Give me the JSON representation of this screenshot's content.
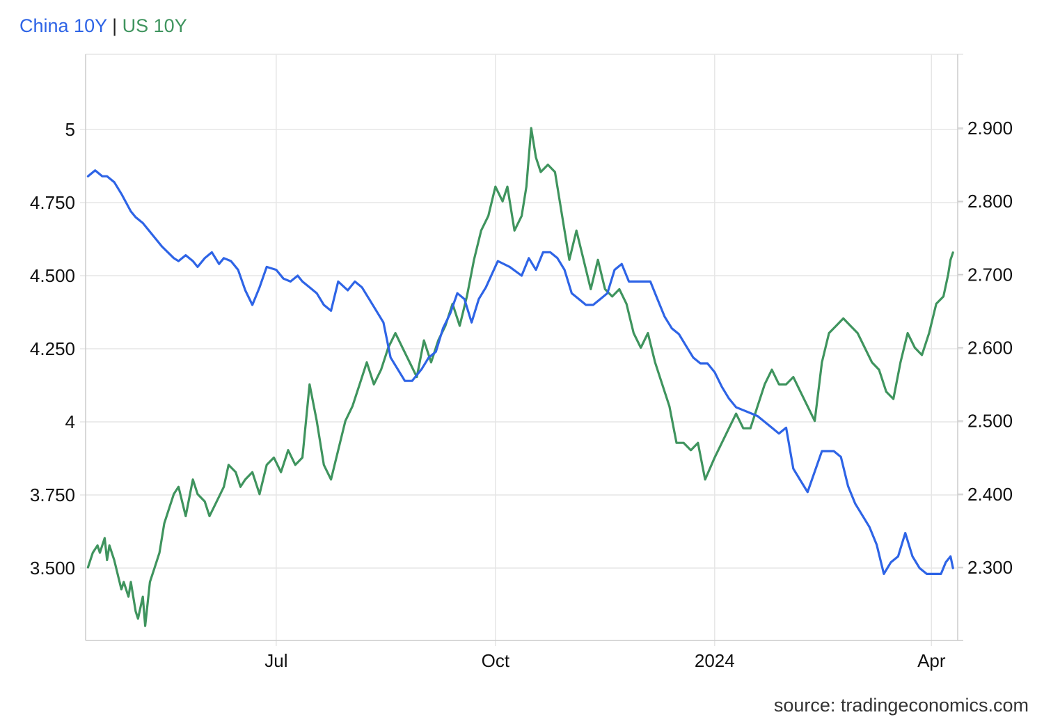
{
  "legend": {
    "china_label": "China 10Y",
    "separator": "|",
    "us_label": "US 10Y"
  },
  "source_label": "source: tradingeconomics.com",
  "chart_data": {
    "type": "line",
    "x_ticks": [
      "Jul",
      "Oct",
      "2024",
      "Apr"
    ],
    "left_axis": {
      "ticks": [
        5,
        4.75,
        4.5,
        4.25,
        4,
        3.75,
        3.5
      ],
      "tick_labels": [
        "5",
        "4.750",
        "4.500",
        "4.250",
        "4",
        "3.750",
        "3.500"
      ],
      "ylim": [
        3.25,
        5.25
      ]
    },
    "right_axis": {
      "ticks": [
        2.9,
        2.8,
        2.7,
        2.6,
        2.5,
        2.4,
        2.3
      ],
      "tick_labels": [
        "2.900",
        "2.800",
        "2.700",
        "2.600",
        "2.500",
        "2.400",
        "2.300"
      ],
      "ylim": [
        2.2,
        2.9
      ]
    },
    "xlim": [
      "2023-04-12",
      "2024-04-12"
    ],
    "grid": true,
    "series": [
      {
        "name": "China 10Y",
        "axis": "left",
        "color": "#2e64e6",
        "dates": [
          "2023-04-13",
          "2023-04-16",
          "2023-04-19",
          "2023-04-21",
          "2023-04-24",
          "2023-04-27",
          "2023-05-01",
          "2023-05-03",
          "2023-05-06",
          "2023-05-14",
          "2023-05-19",
          "2023-05-21",
          "2023-05-24",
          "2023-05-27",
          "2023-05-29",
          "2023-06-01",
          "2023-06-04",
          "2023-06-07",
          "2023-06-09",
          "2023-06-12",
          "2023-06-15",
          "2023-06-18",
          "2023-06-21",
          "2023-06-24",
          "2023-06-27",
          "2023-07-01",
          "2023-07-04",
          "2023-07-07",
          "2023-07-10",
          "2023-07-12",
          "2023-07-15",
          "2023-07-18",
          "2023-07-21",
          "2023-07-24",
          "2023-07-27",
          "2023-07-31",
          "2023-08-03",
          "2023-08-06",
          "2023-08-09",
          "2023-08-12",
          "2023-08-15",
          "2023-08-18",
          "2023-08-21",
          "2023-08-24",
          "2023-08-27",
          "2023-08-31",
          "2023-09-03",
          "2023-09-06",
          "2023-09-09",
          "2023-09-12",
          "2023-09-15",
          "2023-09-18",
          "2023-09-21",
          "2023-09-24",
          "2023-09-27",
          "2023-10-02",
          "2023-10-07",
          "2023-10-12",
          "2023-10-15",
          "2023-10-18",
          "2023-10-21",
          "2023-10-24",
          "2023-10-27",
          "2023-10-30",
          "2023-11-02",
          "2023-11-05",
          "2023-11-08",
          "2023-11-11",
          "2023-11-14",
          "2023-11-17",
          "2023-11-20",
          "2023-11-23",
          "2023-11-26",
          "2023-11-29",
          "2023-12-02",
          "2023-12-05",
          "2023-12-08",
          "2023-12-11",
          "2023-12-14",
          "2023-12-17",
          "2023-12-20",
          "2023-12-23",
          "2023-12-26",
          "2023-12-29",
          "2024-01-01",
          "2024-01-04",
          "2024-01-07",
          "2024-01-10",
          "2024-01-13",
          "2024-01-16",
          "2024-01-19",
          "2024-01-22",
          "2024-01-25",
          "2024-01-28",
          "2024-01-31",
          "2024-02-03",
          "2024-02-06",
          "2024-02-09",
          "2024-02-15",
          "2024-02-20",
          "2024-02-23",
          "2024-02-26",
          "2024-02-29",
          "2024-03-03",
          "2024-03-06",
          "2024-03-09",
          "2024-03-12",
          "2024-03-15",
          "2024-03-18",
          "2024-03-21",
          "2024-03-24",
          "2024-03-27",
          "2024-03-30",
          "2024-04-05",
          "2024-04-07",
          "2024-04-09",
          "2024-04-10"
        ],
        "values": [
          4.84,
          4.86,
          4.84,
          4.84,
          4.82,
          4.78,
          4.72,
          4.7,
          4.68,
          4.6,
          4.56,
          4.55,
          4.57,
          4.55,
          4.53,
          4.56,
          4.58,
          4.54,
          4.56,
          4.55,
          4.52,
          4.45,
          4.4,
          4.46,
          4.53,
          4.52,
          4.49,
          4.48,
          4.5,
          4.48,
          4.46,
          4.44,
          4.4,
          4.38,
          4.48,
          4.45,
          4.48,
          4.46,
          4.42,
          4.38,
          4.34,
          4.22,
          4.18,
          4.14,
          4.14,
          4.18,
          4.22,
          4.24,
          4.32,
          4.37,
          4.44,
          4.42,
          4.34,
          4.42,
          4.46,
          4.55,
          4.53,
          4.5,
          4.56,
          4.52,
          4.58,
          4.58,
          4.56,
          4.52,
          4.44,
          4.42,
          4.4,
          4.4,
          4.42,
          4.44,
          4.52,
          4.54,
          4.48,
          4.48,
          4.48,
          4.48,
          4.42,
          4.36,
          4.32,
          4.3,
          4.26,
          4.22,
          4.2,
          4.2,
          4.17,
          4.12,
          4.08,
          4.05,
          4.04,
          4.03,
          4.02,
          4.0,
          3.98,
          3.96,
          3.98,
          3.84,
          3.8,
          3.76,
          3.9,
          3.9,
          3.88,
          3.78,
          3.72,
          3.68,
          3.64,
          3.58,
          3.48,
          3.52,
          3.54,
          3.62,
          3.54,
          3.5,
          3.48,
          3.48,
          3.52,
          3.54,
          3.5
        ],
        "note_end_value": 3.49
      },
      {
        "name": "US 10Y",
        "axis": "right",
        "color": "#3f945e",
        "dates": [
          "2023-04-13",
          "2023-04-15",
          "2023-04-17",
          "2023-04-18",
          "2023-04-20",
          "2023-04-21",
          "2023-04-22",
          "2023-04-24",
          "2023-04-27",
          "2023-04-28",
          "2023-04-30",
          "2023-05-01",
          "2023-05-03",
          "2023-05-04",
          "2023-05-06",
          "2023-05-07",
          "2023-05-09",
          "2023-05-11",
          "2023-05-13",
          "2023-05-15",
          "2023-05-17",
          "2023-05-19",
          "2023-05-21",
          "2023-05-24",
          "2023-05-27",
          "2023-05-29",
          "2023-06-01",
          "2023-06-03",
          "2023-06-06",
          "2023-06-09",
          "2023-06-11",
          "2023-06-14",
          "2023-06-16",
          "2023-06-18",
          "2023-06-21",
          "2023-06-24",
          "2023-06-27",
          "2023-06-30",
          "2023-07-03",
          "2023-07-06",
          "2023-07-09",
          "2023-07-12",
          "2023-07-15",
          "2023-07-18",
          "2023-07-21",
          "2023-07-24",
          "2023-07-27",
          "2023-07-30",
          "2023-08-02",
          "2023-08-05",
          "2023-08-08",
          "2023-08-11",
          "2023-08-14",
          "2023-08-17",
          "2023-08-20",
          "2023-08-23",
          "2023-08-26",
          "2023-08-29",
          "2023-09-01",
          "2023-09-04",
          "2023-09-07",
          "2023-09-10",
          "2023-09-13",
          "2023-09-16",
          "2023-09-19",
          "2023-09-22",
          "2023-09-25",
          "2023-09-28",
          "2023-10-01",
          "2023-10-04",
          "2023-10-06",
          "2023-10-09",
          "2023-10-12",
          "2023-10-14",
          "2023-10-16",
          "2023-10-18",
          "2023-10-20",
          "2023-10-23",
          "2023-10-26",
          "2023-10-29",
          "2023-11-01",
          "2023-11-04",
          "2023-11-07",
          "2023-11-10",
          "2023-11-13",
          "2023-11-16",
          "2023-11-19",
          "2023-11-22",
          "2023-11-25",
          "2023-11-28",
          "2023-12-01",
          "2023-12-04",
          "2023-12-07",
          "2023-12-10",
          "2023-12-13",
          "2023-12-16",
          "2023-12-19",
          "2023-12-22",
          "2023-12-25",
          "2023-12-28",
          "2024-01-01",
          "2024-01-04",
          "2024-01-07",
          "2024-01-10",
          "2024-01-13",
          "2024-01-16",
          "2024-01-19",
          "2024-01-22",
          "2024-01-25",
          "2024-01-28",
          "2024-01-31",
          "2024-02-03",
          "2024-02-06",
          "2024-02-09",
          "2024-02-12",
          "2024-02-15",
          "2024-02-18",
          "2024-02-21",
          "2024-02-24",
          "2024-02-27",
          "2024-03-01",
          "2024-03-04",
          "2024-03-07",
          "2024-03-10",
          "2024-03-13",
          "2024-03-16",
          "2024-03-19",
          "2024-03-22",
          "2024-03-25",
          "2024-03-28",
          "2024-03-31",
          "2024-04-03",
          "2024-04-06",
          "2024-04-08",
          "2024-04-09",
          "2024-04-10"
        ],
        "values": [
          2.3,
          2.32,
          2.33,
          2.32,
          2.34,
          2.31,
          2.33,
          2.31,
          2.27,
          2.28,
          2.26,
          2.28,
          2.24,
          2.23,
          2.26,
          2.22,
          2.28,
          2.3,
          2.32,
          2.36,
          2.38,
          2.4,
          2.41,
          2.37,
          2.42,
          2.4,
          2.39,
          2.37,
          2.39,
          2.41,
          2.44,
          2.43,
          2.41,
          2.42,
          2.43,
          2.4,
          2.44,
          2.45,
          2.43,
          2.46,
          2.44,
          2.45,
          2.55,
          2.5,
          2.44,
          2.42,
          2.46,
          2.5,
          2.52,
          2.55,
          2.58,
          2.55,
          2.57,
          2.6,
          2.62,
          2.6,
          2.58,
          2.56,
          2.61,
          2.58,
          2.61,
          2.63,
          2.66,
          2.63,
          2.67,
          2.72,
          2.76,
          2.78,
          2.82,
          2.8,
          2.82,
          2.76,
          2.78,
          2.82,
          2.9,
          2.86,
          2.84,
          2.85,
          2.84,
          2.78,
          2.72,
          2.76,
          2.72,
          2.68,
          2.72,
          2.68,
          2.67,
          2.68,
          2.66,
          2.62,
          2.6,
          2.62,
          2.58,
          2.55,
          2.52,
          2.47,
          2.47,
          2.46,
          2.47,
          2.42,
          2.45,
          2.47,
          2.49,
          2.51,
          2.49,
          2.49,
          2.52,
          2.55,
          2.57,
          2.55,
          2.55,
          2.56,
          2.54,
          2.52,
          2.5,
          2.58,
          2.62,
          2.63,
          2.64,
          2.63,
          2.62,
          2.6,
          2.58,
          2.57,
          2.54,
          2.53,
          2.58,
          2.62,
          2.6,
          2.59,
          2.62,
          2.66,
          2.67,
          2.7,
          2.72,
          2.73
        ],
        "note_end_value": 2.71
      }
    ]
  }
}
